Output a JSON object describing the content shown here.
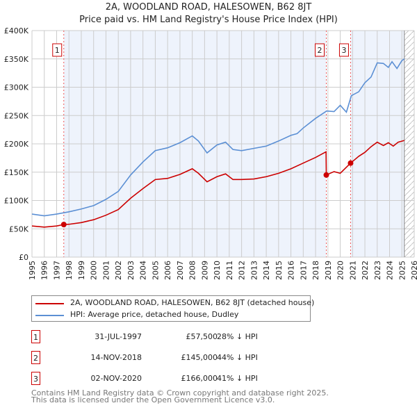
{
  "title": "2A, WOODLAND ROAD, HALESOWEN, B62 8JT",
  "subtitle": "Price paid vs. HM Land Registry's House Price Index (HPI)",
  "chart_data": {
    "type": "line",
    "xlim": [
      1995,
      2026
    ],
    "ylim": [
      0,
      400000
    ],
    "yticks": [
      {
        "v": 0,
        "l": "£0"
      },
      {
        "v": 50000,
        "l": "£50K"
      },
      {
        "v": 100000,
        "l": "£100K"
      },
      {
        "v": 150000,
        "l": "£150K"
      },
      {
        "v": 200000,
        "l": "£200K"
      },
      {
        "v": 250000,
        "l": "£250K"
      },
      {
        "v": 300000,
        "l": "£300K"
      },
      {
        "v": 350000,
        "l": "£350K"
      },
      {
        "v": 400000,
        "l": "£400K"
      }
    ],
    "xticks": [
      "1995",
      "1996",
      "1997",
      "1998",
      "1999",
      "2000",
      "2001",
      "2002",
      "2003",
      "2004",
      "2005",
      "2006",
      "2007",
      "2008",
      "2009",
      "2010",
      "2011",
      "2012",
      "2013",
      "2014",
      "2015",
      "2016",
      "2017",
      "2018",
      "2019",
      "2020",
      "2021",
      "2022",
      "2023",
      "2024",
      "2025",
      "2026"
    ],
    "series": [
      {
        "name": "2A, WOODLAND ROAD, HALESOWEN, B62 8JT (detached house)",
        "color": "#cc0000",
        "x": [
          1995,
          1996,
          1997,
          1997.58,
          1998,
          1999,
          2000,
          2001,
          2002,
          2003,
          2004,
          2005,
          2006,
          2007,
          2008,
          2008.5,
          2009.2,
          2010,
          2010.7,
          2011.3,
          2012,
          2013,
          2014,
          2015,
          2016,
          2017,
          2018,
          2018.85,
          2018.87,
          2019.5,
          2020,
          2020.84,
          2021.5,
          2022,
          2022.5,
          2023,
          2023.5,
          2023.9,
          2024.3,
          2024.7,
          2025.2
        ],
        "y": [
          55000,
          53000,
          55000,
          57500,
          58000,
          61000,
          66000,
          74000,
          84000,
          104000,
          121000,
          137000,
          139000,
          146000,
          156000,
          148000,
          133000,
          142000,
          147000,
          137000,
          137000,
          138000,
          142000,
          148000,
          156000,
          166000,
          176000,
          186000,
          145000,
          151000,
          148000,
          166000,
          178000,
          185000,
          195000,
          203000,
          197000,
          202000,
          196000,
          203000,
          206000
        ]
      },
      {
        "name": "HPI: Average price, detached house, Dudley",
        "color": "#5b8fd4",
        "x": [
          1995,
          1996,
          1997,
          1998,
          1999,
          2000,
          2001,
          2002,
          2003,
          2004,
          2005,
          2006,
          2007,
          2008,
          2008.5,
          2009.2,
          2010,
          2010.7,
          2011.3,
          2012,
          2013,
          2014,
          2015,
          2016,
          2016.5,
          2017,
          2018,
          2018.9,
          2019.5,
          2020,
          2020.5,
          2020.9,
          2021.5,
          2022,
          2022.5,
          2023,
          2023.5,
          2023.9,
          2024.2,
          2024.6,
          2025,
          2025.2
        ],
        "y": [
          76000,
          73000,
          76000,
          80000,
          85000,
          91000,
          102000,
          116000,
          145000,
          168000,
          188000,
          193000,
          202000,
          214000,
          205000,
          184000,
          198000,
          203000,
          190000,
          188000,
          192000,
          196000,
          205000,
          215000,
          218000,
          228000,
          245000,
          258000,
          257000,
          268000,
          256000,
          285000,
          292000,
          308000,
          318000,
          343000,
          342000,
          335000,
          345000,
          333000,
          347000,
          350000
        ]
      }
    ],
    "sales": [
      {
        "label": "1",
        "x": 1997.58,
        "y": 57500,
        "date": "31-JUL-1997",
        "price": "£57,500",
        "hpi": "28% ↓ HPI"
      },
      {
        "label": "2",
        "x": 2018.87,
        "y": 145000,
        "date": "14-NOV-2018",
        "price": "£145,000",
        "hpi": "44% ↓ HPI"
      },
      {
        "label": "3",
        "x": 2020.84,
        "y": 166000,
        "date": "02-NOV-2020",
        "price": "£166,000",
        "hpi": "41% ↓ HPI"
      }
    ],
    "data_end": 2025.2
  },
  "footer": [
    "Contains HM Land Registry data © Crown copyright and database right 2025.",
    "This data is licensed under the Open Government Licence v3.0."
  ]
}
